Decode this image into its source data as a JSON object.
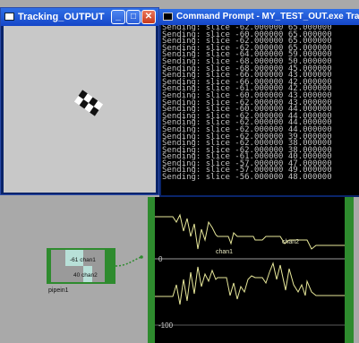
{
  "tracking_window": {
    "title": "Tracking_OUTPUT",
    "buttons": {
      "minimize": "_",
      "maximize": "□",
      "close": "✕"
    }
  },
  "cmd_window": {
    "title": "Command Prompt - MY_TEST_OUT.exe Tracking_OUT",
    "lines": [
      "Sending: slice -62.000000 65.000000",
      "Sending: slice -60.000000 65.000000",
      "Sending: slice -62.000000 65.000000",
      "Sending: slice -62.000000 65.000000",
      "Sending: slice -64.000000 59.000000",
      "Sending: slice -68.000000 50.000000",
      "Sending: slice -68.000000 45.000000",
      "Sending: slice -66.000000 43.000000",
      "Sending: slice -66.000000 42.000000",
      "Sending: slice -61.000000 42.000000",
      "Sending: slice -60.000000 43.000000",
      "Sending: slice -62.000000 43.000000",
      "Sending: slice -60.000000 44.000000",
      "Sending: slice -62.000000 44.000000",
      "Sending: slice -62.000000 44.000000",
      "Sending: slice -62.000000 44.000000",
      "Sending: slice -62.000000 39.000000",
      "Sending: slice -62.000000 38.000000",
      "Sending: slice -62.000000 38.000000",
      "Sending: slice -61.000000 40.000000",
      "Sending: slice -57.000000 47.000000",
      "Sending: slice -57.000000 49.000000",
      "Sending: slice -56.000000 48.000000"
    ]
  },
  "chop_viewer": {
    "axis_labels": {
      "zero": "0",
      "minus100": "-100"
    },
    "channel_labels": {
      "chan1": "chan1",
      "chan2": "chan2"
    }
  },
  "pipein_node": {
    "name": "pipein1",
    "chan1_value": "-61 chan1",
    "chan2_value": "40 chan2"
  },
  "colors": {
    "node_green": "#2e8b2e",
    "trace_yellow": "#e8e89a",
    "titlebar_blue": "#1f57d8"
  }
}
